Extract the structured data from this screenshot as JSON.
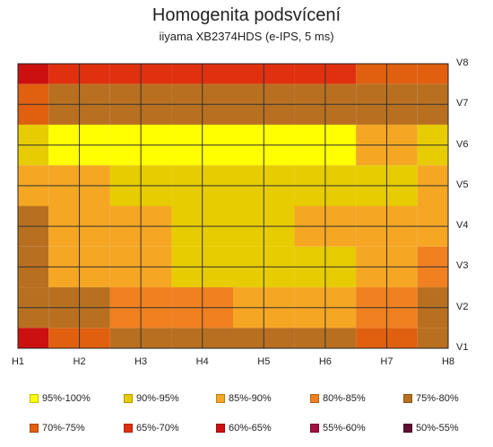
{
  "title": "Homogenita podsvícení",
  "subtitle": "iiyama XB2374HDS  (e-IPS, 5 ms)",
  "chart_data": {
    "type": "heatmap",
    "title": "Homogenita podsvícení",
    "subtitle": "iiyama XB2374HDS  (e-IPS, 5 ms)",
    "x_labels": [
      "H1",
      "H2",
      "H3",
      "H4",
      "H5",
      "H6",
      "H7",
      "H8"
    ],
    "y_labels": [
      "V1",
      "V2",
      "V3",
      "V4",
      "V5",
      "V6",
      "V7",
      "V8"
    ],
    "grid": true,
    "legend_position": "bottom",
    "bands": [
      {
        "label": "95%-100%",
        "color": "#ffff00"
      },
      {
        "label": "90%-95%",
        "color": "#e6cc00"
      },
      {
        "label": "85%-90%",
        "color": "#f5a623"
      },
      {
        "label": "80%-85%",
        "color": "#f08020"
      },
      {
        "label": "75%-80%",
        "color": "#b87020"
      },
      {
        "label": "70%-75%",
        "color": "#e06010"
      },
      {
        "label": "65%-70%",
        "color": "#e03010"
      },
      {
        "label": "60%-65%",
        "color": "#cc1010"
      },
      {
        "label": "55%-60%",
        "color": "#a01040"
      },
      {
        "label": "50%-55%",
        "color": "#601030"
      }
    ],
    "values": [
      [
        64,
        66,
        70,
        70,
        70,
        70,
        72,
        74
      ],
      [
        74,
        76,
        78,
        78,
        78,
        80,
        78,
        80
      ],
      [
        92,
        96,
        96,
        96,
        96,
        96,
        90,
        92
      ],
      [
        88,
        90,
        92,
        94,
        92,
        92,
        95,
        90
      ],
      [
        78,
        86,
        90,
        92,
        94,
        90,
        88,
        86
      ],
      [
        80,
        86,
        88,
        91,
        91,
        91,
        88,
        82
      ],
      [
        76,
        80,
        82,
        84,
        86,
        86,
        84,
        80
      ],
      [
        64,
        72,
        76,
        76,
        80,
        80,
        74,
        76
      ]
    ]
  }
}
